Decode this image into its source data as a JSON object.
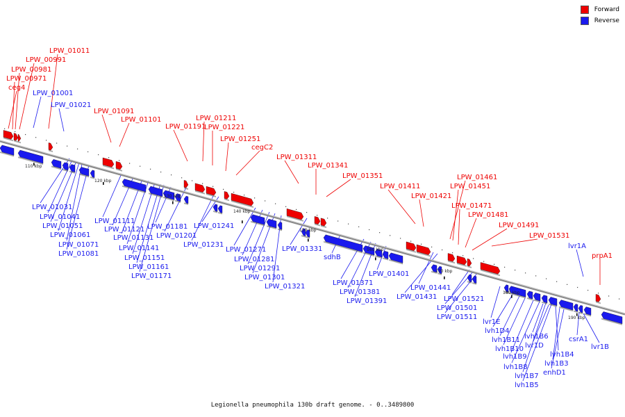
{
  "legend": {
    "items": [
      {
        "label": "Forward",
        "color": "#ee0000"
      },
      {
        "label": "Reverse",
        "color": "#1a1aee"
      }
    ]
  },
  "caption": "Legionella pneumophila 130b draft genome. - 0..3489800",
  "ticks": [
    "110 kbp",
    "120 kbp",
    "130 kbp",
    "140 kbp",
    "150 kbp",
    "160 kbp",
    "170 kbp",
    "180 kbp",
    "190 kbp"
  ],
  "forward_labels": [
    "LPW_01011",
    "LPW_00991",
    "LPW_00981",
    "LPW_00971",
    "ceg4",
    "LPW_01091",
    "LPW_01101",
    "LPW_01211",
    "LPW_01191",
    "LPW_01221",
    "LPW_01251",
    "cegC2",
    "LPW_01311",
    "LPW_01341",
    "LPW_01351",
    "LPW_01411",
    "LPW_01421",
    "LPW_01461",
    "LPW_01451",
    "LPW_01471",
    "LPW_01481",
    "LPW_01491",
    "LPW_01531",
    "prpA1"
  ],
  "reverse_labels": [
    "LPW_01001",
    "LPW_01021",
    "LPW_01031",
    "LPW_01041",
    "LPW_01051",
    "LPW_01061",
    "LPW_01071",
    "LPW_01081",
    "LPW_01111",
    "LPW_01121",
    "LPW_01131",
    "LPW_01141",
    "LPW_01151",
    "LPW_01161",
    "LPW_01171",
    "LPW_01181",
    "LPW_01201",
    "LPW_01241",
    "LPW_01231",
    "LPW_01271",
    "LPW_01281",
    "LPW_01291",
    "LPW_01301",
    "LPW_01321",
    "LPW_01331",
    "sdhB",
    "LPW_01371",
    "LPW_01381",
    "LPW_01391",
    "LPW_01401",
    "LPW_01441",
    "LPW_01431",
    "LPW_01521",
    "LPW_01501",
    "LPW_01511",
    "lvr1A",
    "lvr1E",
    "lvh1D4",
    "lvh1B11",
    "lvh1B10",
    "lvh1B9",
    "lvh1B8",
    "lvh1B7",
    "lvh1B5",
    "lvh1B6",
    "lvr1D",
    "lvh1B4",
    "lvh1B3",
    "enhD1",
    "csrA1",
    "lvr1B"
  ]
}
